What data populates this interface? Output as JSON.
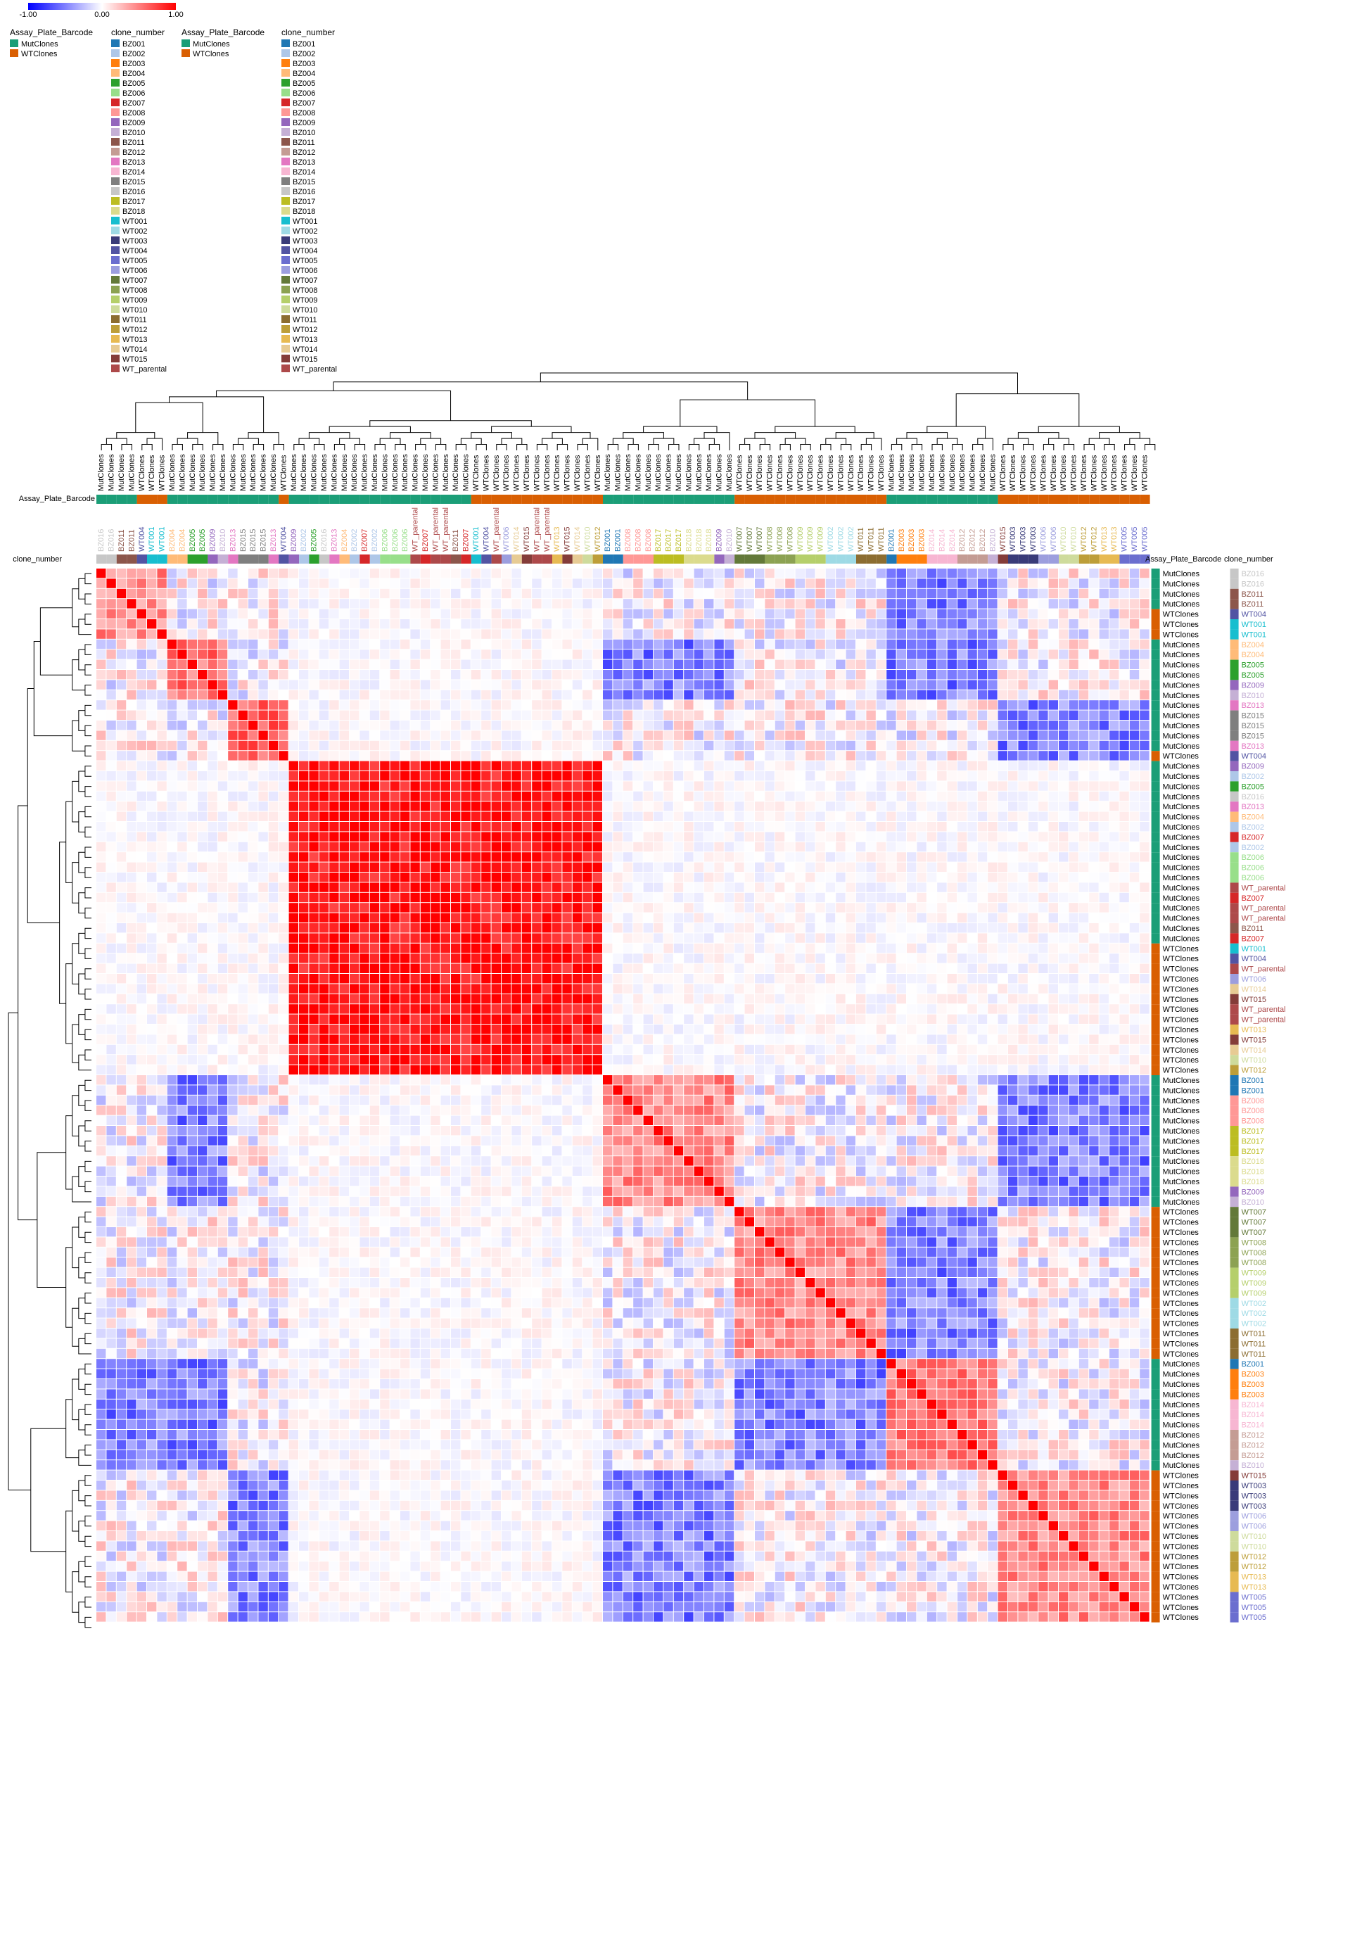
{
  "colors": {
    "low": "#0000ff",
    "mid": "#ffffff",
    "high": "#ff0000",
    "MutClones": "#1b9e77",
    "WTClones": "#d95f02"
  },
  "colorbar": {
    "ticks": [
      "-1.00",
      "0.00",
      "1.00"
    ]
  },
  "legends": {
    "plate_title": "Assay_Plate_Barcode",
    "clone_title": "clone_number",
    "plates": [
      {
        "name": "MutClones",
        "color": "#1b9e77"
      },
      {
        "name": "WTClones",
        "color": "#d95f02"
      }
    ],
    "clones": [
      {
        "name": "BZ001",
        "color": "#1f77b4"
      },
      {
        "name": "BZ002",
        "color": "#aec7e8"
      },
      {
        "name": "BZ003",
        "color": "#ff7f0e"
      },
      {
        "name": "BZ004",
        "color": "#ffbb78"
      },
      {
        "name": "BZ005",
        "color": "#2ca02c"
      },
      {
        "name": "BZ006",
        "color": "#98df8a"
      },
      {
        "name": "BZ007",
        "color": "#d62728"
      },
      {
        "name": "BZ008",
        "color": "#ff9896"
      },
      {
        "name": "BZ009",
        "color": "#9467bd"
      },
      {
        "name": "BZ010",
        "color": "#c5b0d5"
      },
      {
        "name": "BZ011",
        "color": "#8c564b"
      },
      {
        "name": "BZ012",
        "color": "#c49c94"
      },
      {
        "name": "BZ013",
        "color": "#e377c2"
      },
      {
        "name": "BZ014",
        "color": "#f7b6d2"
      },
      {
        "name": "BZ015",
        "color": "#7f7f7f"
      },
      {
        "name": "BZ016",
        "color": "#c7c7c7"
      },
      {
        "name": "BZ017",
        "color": "#bcbd22"
      },
      {
        "name": "BZ018",
        "color": "#dbdb8d"
      },
      {
        "name": "WT001",
        "color": "#17becf"
      },
      {
        "name": "WT002",
        "color": "#9edae5"
      },
      {
        "name": "WT003",
        "color": "#393b79"
      },
      {
        "name": "WT004",
        "color": "#5254a3"
      },
      {
        "name": "WT005",
        "color": "#6b6ecf"
      },
      {
        "name": "WT006",
        "color": "#9c9ede"
      },
      {
        "name": "WT007",
        "color": "#637939"
      },
      {
        "name": "WT008",
        "color": "#8ca252"
      },
      {
        "name": "WT009",
        "color": "#b5cf6b"
      },
      {
        "name": "WT010",
        "color": "#cedb9c"
      },
      {
        "name": "WT011",
        "color": "#8c6d31"
      },
      {
        "name": "WT012",
        "color": "#bd9e39"
      },
      {
        "name": "WT013",
        "color": "#e7ba52"
      },
      {
        "name": "WT014",
        "color": "#e7cb94"
      },
      {
        "name": "WT015",
        "color": "#843c39"
      },
      {
        "name": "WT_parental",
        "color": "#ad494a"
      }
    ]
  },
  "axis_labels": {
    "top_annotation": "Assay_Plate_Barcode",
    "top_clone": "clone_number",
    "right_plate": "Assay_Plate_Barcode",
    "right_clone": "clone_number"
  },
  "chart_data": {
    "type": "heatmap",
    "value_range": [
      -1,
      1
    ],
    "columns": [
      {
        "clone": "BZ016",
        "plate": "MutClones"
      },
      {
        "clone": "BZ016",
        "plate": "MutClones"
      },
      {
        "clone": "BZ011",
        "plate": "MutClones"
      },
      {
        "clone": "BZ011",
        "plate": "MutClones"
      },
      {
        "clone": "WT004",
        "plate": "WTClones"
      },
      {
        "clone": "WT001",
        "plate": "WTClones"
      },
      {
        "clone": "WT001",
        "plate": "WTClones"
      },
      {
        "clone": "BZ004",
        "plate": "MutClones"
      },
      {
        "clone": "BZ004",
        "plate": "MutClones"
      },
      {
        "clone": "BZ005",
        "plate": "MutClones"
      },
      {
        "clone": "BZ005",
        "plate": "MutClones"
      },
      {
        "clone": "BZ009",
        "plate": "MutClones"
      },
      {
        "clone": "BZ010",
        "plate": "MutClones"
      },
      {
        "clone": "BZ013",
        "plate": "MutClones"
      },
      {
        "clone": "BZ015",
        "plate": "MutClones"
      },
      {
        "clone": "BZ015",
        "plate": "MutClones"
      },
      {
        "clone": "BZ015",
        "plate": "MutClones"
      },
      {
        "clone": "BZ013",
        "plate": "MutClones"
      },
      {
        "clone": "WT004",
        "plate": "WTClones"
      },
      {
        "clone": "BZ009",
        "plate": "MutClones"
      },
      {
        "clone": "BZ002",
        "plate": "MutClones"
      },
      {
        "clone": "BZ005",
        "plate": "MutClones"
      },
      {
        "clone": "BZ016",
        "plate": "MutClones"
      },
      {
        "clone": "BZ013",
        "plate": "MutClones"
      },
      {
        "clone": "BZ004",
        "plate": "MutClones"
      },
      {
        "clone": "BZ002",
        "plate": "MutClones"
      },
      {
        "clone": "BZ007",
        "plate": "MutClones"
      },
      {
        "clone": "BZ002",
        "plate": "MutClones"
      },
      {
        "clone": "BZ006",
        "plate": "MutClones"
      },
      {
        "clone": "BZ006",
        "plate": "MutClones"
      },
      {
        "clone": "BZ006",
        "plate": "MutClones"
      },
      {
        "clone": "WT_parental",
        "plate": "MutClones"
      },
      {
        "clone": "BZ007",
        "plate": "MutClones"
      },
      {
        "clone": "WT_parental",
        "plate": "MutClones"
      },
      {
        "clone": "WT_parental",
        "plate": "MutClones"
      },
      {
        "clone": "BZ011",
        "plate": "MutClones"
      },
      {
        "clone": "BZ007",
        "plate": "MutClones"
      },
      {
        "clone": "WT001",
        "plate": "WTClones"
      },
      {
        "clone": "WT004",
        "plate": "WTClones"
      },
      {
        "clone": "WT_parental",
        "plate": "WTClones"
      },
      {
        "clone": "WT006",
        "plate": "WTClones"
      },
      {
        "clone": "WT014",
        "plate": "WTClones"
      },
      {
        "clone": "WT015",
        "plate": "WTClones"
      },
      {
        "clone": "WT_parental",
        "plate": "WTClones"
      },
      {
        "clone": "WT_parental",
        "plate": "WTClones"
      },
      {
        "clone": "WT013",
        "plate": "WTClones"
      },
      {
        "clone": "WT015",
        "plate": "WTClones"
      },
      {
        "clone": "WT014",
        "plate": "WTClones"
      },
      {
        "clone": "WT010",
        "plate": "WTClones"
      },
      {
        "clone": "WT012",
        "plate": "WTClones"
      },
      {
        "clone": "BZ001",
        "plate": "MutClones"
      },
      {
        "clone": "BZ001",
        "plate": "MutClones"
      },
      {
        "clone": "BZ008",
        "plate": "MutClones"
      },
      {
        "clone": "BZ008",
        "plate": "MutClones"
      },
      {
        "clone": "BZ008",
        "plate": "MutClones"
      },
      {
        "clone": "BZ017",
        "plate": "MutClones"
      },
      {
        "clone": "BZ017",
        "plate": "MutClones"
      },
      {
        "clone": "BZ017",
        "plate": "MutClones"
      },
      {
        "clone": "BZ018",
        "plate": "MutClones"
      },
      {
        "clone": "BZ018",
        "plate": "MutClones"
      },
      {
        "clone": "BZ018",
        "plate": "MutClones"
      },
      {
        "clone": "BZ009",
        "plate": "MutClones"
      },
      {
        "clone": "BZ010",
        "plate": "MutClones"
      },
      {
        "clone": "WT007",
        "plate": "WTClones"
      },
      {
        "clone": "WT007",
        "plate": "WTClones"
      },
      {
        "clone": "WT007",
        "plate": "WTClones"
      },
      {
        "clone": "WT008",
        "plate": "WTClones"
      },
      {
        "clone": "WT008",
        "plate": "WTClones"
      },
      {
        "clone": "WT008",
        "plate": "WTClones"
      },
      {
        "clone": "WT009",
        "plate": "WTClones"
      },
      {
        "clone": "WT009",
        "plate": "WTClones"
      },
      {
        "clone": "WT009",
        "plate": "WTClones"
      },
      {
        "clone": "WT002",
        "plate": "WTClones"
      },
      {
        "clone": "WT002",
        "plate": "WTClones"
      },
      {
        "clone": "WT002",
        "plate": "WTClones"
      },
      {
        "clone": "WT011",
        "plate": "WTClones"
      },
      {
        "clone": "WT011",
        "plate": "WTClones"
      },
      {
        "clone": "WT011",
        "plate": "WTClones"
      },
      {
        "clone": "BZ001",
        "plate": "MutClones"
      },
      {
        "clone": "BZ003",
        "plate": "MutClones"
      },
      {
        "clone": "BZ003",
        "plate": "MutClones"
      },
      {
        "clone": "BZ003",
        "plate": "MutClones"
      },
      {
        "clone": "BZ014",
        "plate": "MutClones"
      },
      {
        "clone": "BZ014",
        "plate": "MutClones"
      },
      {
        "clone": "BZ014",
        "plate": "MutClones"
      },
      {
        "clone": "BZ012",
        "plate": "MutClones"
      },
      {
        "clone": "BZ012",
        "plate": "MutClones"
      },
      {
        "clone": "BZ012",
        "plate": "MutClones"
      },
      {
        "clone": "BZ010",
        "plate": "MutClones"
      },
      {
        "clone": "WT015",
        "plate": "WTClones"
      },
      {
        "clone": "WT003",
        "plate": "WTClones"
      },
      {
        "clone": "WT003",
        "plate": "WTClones"
      },
      {
        "clone": "WT003",
        "plate": "WTClones"
      },
      {
        "clone": "WT006",
        "plate": "WTClones"
      },
      {
        "clone": "WT006",
        "plate": "WTClones"
      },
      {
        "clone": "WT010",
        "plate": "WTClones"
      },
      {
        "clone": "WT010",
        "plate": "WTClones"
      },
      {
        "clone": "WT012",
        "plate": "WTClones"
      },
      {
        "clone": "WT012",
        "plate": "WTClones"
      },
      {
        "clone": "WT013",
        "plate": "WTClones"
      },
      {
        "clone": "WT013",
        "plate": "WTClones"
      },
      {
        "clone": "WT005",
        "plate": "WTClones"
      },
      {
        "clone": "WT005",
        "plate": "WTClones"
      },
      {
        "clone": "WT005",
        "plate": "WTClones"
      }
    ],
    "blocks": [
      {
        "start": 0,
        "end": 6,
        "level": 0.45
      },
      {
        "start": 7,
        "end": 12,
        "level": 0.55
      },
      {
        "start": 13,
        "end": 18,
        "level": 0.6
      },
      {
        "start": 19,
        "end": 49,
        "level": 0.92
      },
      {
        "start": 50,
        "end": 62,
        "level": 0.45
      },
      {
        "start": 63,
        "end": 77,
        "level": 0.45
      },
      {
        "start": 78,
        "end": 88,
        "level": 0.5
      },
      {
        "start": 89,
        "end": 104,
        "level": 0.45
      }
    ],
    "negative_pairs": [
      [
        7,
        12,
        50,
        62
      ],
      [
        7,
        12,
        78,
        88
      ],
      [
        0,
        6,
        78,
        88
      ],
      [
        63,
        77,
        78,
        88
      ],
      [
        13,
        18,
        89,
        104
      ],
      [
        50,
        62,
        89,
        104
      ]
    ]
  }
}
